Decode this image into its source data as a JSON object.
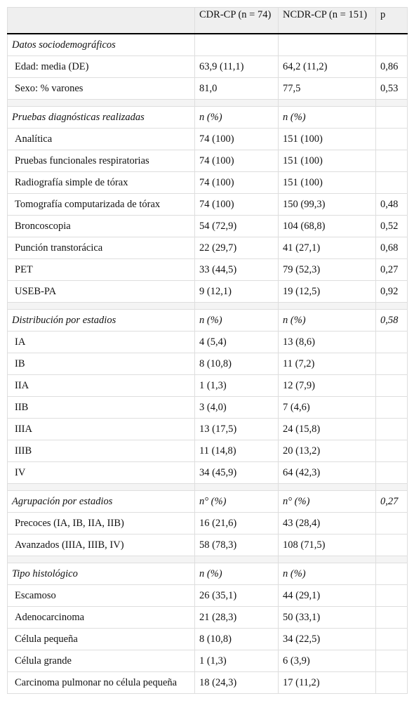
{
  "table": {
    "header": [
      "CDR-CP (n = 74)",
      "NCDR-CP (n = 151)",
      "p"
    ],
    "sections": [
      {
        "title": "Datos sociodemográficos",
        "rows": [
          [
            "Edad: media (DE)",
            "63,9 (11,1)",
            "64,2 (11,2)",
            "0,86"
          ],
          [
            "Sexo: % varones",
            "81,0",
            "77,5",
            "0,53"
          ]
        ]
      },
      {
        "title": "Pruebas diagnósticas realizadas",
        "cols": [
          "n (%)",
          "n (%)"
        ],
        "rows": [
          [
            "Analítica",
            "74 (100)",
            "151 (100)"
          ],
          [
            "Pruebas funcionales respiratorias",
            "74 (100)",
            "151 (100)"
          ],
          [
            "Radiografía simple de tórax",
            "74 (100)",
            "151 (100)"
          ],
          [
            "Tomografía computarizada de tórax",
            "74 (100)",
            "150 (99,3)",
            "0,48"
          ],
          [
            "Broncoscopia",
            "54 (72,9)",
            "104 (68,8)",
            "0,52"
          ],
          [
            "Punción transtorácica",
            "22 (29,7)",
            "41 (27,1)",
            "0,68"
          ],
          [
            "PET",
            "33 (44,5)",
            "79 (52,3)",
            "0,27"
          ],
          [
            "USEB-PA",
            "9 (12,1)",
            "19 (12,5)",
            "0,92"
          ]
        ]
      },
      {
        "title": "Distribución por estadios",
        "cols": [
          "n (%)",
          "n (%)"
        ],
        "p": "0,58",
        "rows": [
          [
            "IA",
            "4 (5,4)",
            "13 (8,6)"
          ],
          [
            "IB",
            "8 (10,8)",
            "11 (7,2)"
          ],
          [
            "IIA",
            "1 (1,3)",
            "12 (7,9)"
          ],
          [
            "IIB",
            "3 (4,0)",
            "7 (4,6)"
          ],
          [
            "IIIA",
            "13 (17,5)",
            "24 (15,8)"
          ],
          [
            "IIIB",
            "11 (14,8)",
            "20 (13,2)"
          ],
          [
            "IV",
            "34 (45,9)",
            "64 (42,3)"
          ]
        ]
      },
      {
        "title": "Agrupación por estadios",
        "cols": [
          "n° (%)",
          "n° (%)"
        ],
        "p": "0,27",
        "rows": [
          [
            "Precoces (IA, IB, IIA, IIB)",
            "16 (21,6)",
            "43 (28,4)"
          ],
          [
            "Avanzados (IIIA, IIIB, IV)",
            "58 (78,3)",
            "108 (71,5)"
          ]
        ]
      },
      {
        "title": "Tipo histológico",
        "cols": [
          "n (%)",
          "n (%)"
        ],
        "rows": [
          [
            "Escamoso",
            "26 (35,1)",
            "44 (29,1)"
          ],
          [
            "Adenocarcinoma",
            "21 (28,3)",
            "50 (33,1)"
          ],
          [
            "Célula pequeña",
            "8 (10,8)",
            "34 (22,5)"
          ],
          [
            "Célula grande",
            "1 (1,3)",
            "6 (3,9)"
          ],
          [
            "Carcinoma pulmonar no célula pequeña",
            "18 (24,3)",
            "17 (11,2)"
          ]
        ]
      }
    ]
  }
}
